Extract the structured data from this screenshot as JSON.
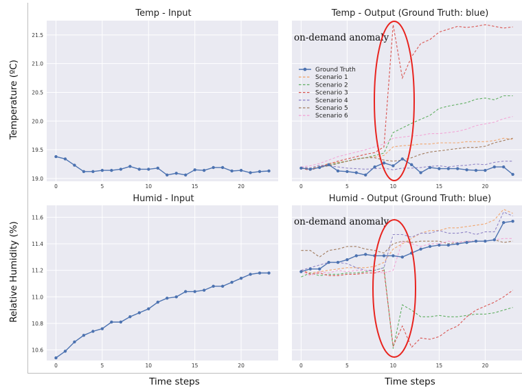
{
  "figure": {
    "ylabels": [
      "Temperature (ºC)",
      "Relative Humidity (%)"
    ],
    "xlabel": "Time steps",
    "annotation": "on-demand anomaly"
  },
  "colors": {
    "ground_truth": "#4c72b0",
    "scenario_1": "#f0a56d",
    "scenario_2": "#5fae60",
    "scenario_3": "#d9534f",
    "scenario_4": "#8f84c6",
    "scenario_5": "#a07a5c",
    "scenario_6": "#f2a6d6",
    "panel_bg": "#eaeaf2",
    "grid": "#ffffff",
    "anomaly_ellipse": "#e8231e"
  },
  "chart_data": [
    {
      "type": "line",
      "title": "Temp - Input",
      "xlabel": "",
      "ylabel": "Temperature (ºC)",
      "xlim": [
        -1,
        24
      ],
      "ylim": [
        18.95,
        21.75
      ],
      "xticks": [
        0,
        5,
        10,
        15,
        20
      ],
      "yticks": [
        19.0,
        19.5,
        20.0,
        20.5,
        21.0,
        21.5
      ],
      "ytick_labels": [
        "19.0",
        "19.5",
        "20.0",
        "20.5",
        "21.0",
        "21.5"
      ],
      "grid": true,
      "series": [
        {
          "name": "",
          "key": "ground_truth",
          "style": "solid-marker",
          "x": [
            0,
            1,
            2,
            3,
            4,
            5,
            6,
            7,
            8,
            9,
            10,
            11,
            12,
            13,
            14,
            15,
            16,
            17,
            18,
            19,
            20,
            21,
            22,
            23
          ],
          "values": [
            19.38,
            19.34,
            19.23,
            19.12,
            19.12,
            19.14,
            19.14,
            19.16,
            19.21,
            19.16,
            19.16,
            19.18,
            19.06,
            19.09,
            19.06,
            19.15,
            19.14,
            19.19,
            19.19,
            19.13,
            19.14,
            19.1,
            19.12,
            19.13
          ]
        }
      ]
    },
    {
      "type": "line",
      "title": "Temp - Output (Ground Truth: blue)",
      "xlabel": "",
      "ylabel": "",
      "xlim": [
        -1,
        24
      ],
      "ylim": [
        18.95,
        21.75
      ],
      "xticks": [
        0,
        5,
        10,
        15,
        20
      ],
      "yticks": [
        19.0,
        19.5,
        20.0,
        20.5,
        21.0,
        21.5
      ],
      "grid": true,
      "legend": "center-left",
      "annotation": {
        "text": "on-demand anomaly",
        "x": 10
      },
      "series": [
        {
          "name": "Ground Truth",
          "key": "ground_truth",
          "style": "solid-marker",
          "x": [
            0,
            1,
            2,
            3,
            4,
            5,
            6,
            7,
            8,
            9,
            10,
            11,
            12,
            13,
            14,
            15,
            16,
            17,
            18,
            19,
            20,
            21,
            22,
            23
          ],
          "values": [
            19.18,
            19.16,
            19.19,
            19.24,
            19.13,
            19.12,
            19.1,
            19.06,
            19.2,
            19.27,
            19.22,
            19.34,
            19.24,
            19.1,
            19.19,
            19.17,
            19.17,
            19.17,
            19.15,
            19.14,
            19.14,
            19.2,
            19.2,
            19.07
          ]
        },
        {
          "name": "Scenario 1",
          "key": "scenario_1",
          "style": "dashed",
          "x": [
            0,
            1,
            2,
            3,
            4,
            5,
            6,
            7,
            8,
            9,
            10,
            11,
            12,
            13,
            14,
            15,
            16,
            17,
            18,
            19,
            20,
            21,
            22,
            23
          ],
          "values": [
            19.18,
            19.18,
            19.21,
            19.26,
            19.28,
            19.3,
            19.33,
            19.36,
            19.38,
            19.4,
            19.55,
            19.57,
            19.58,
            19.6,
            19.6,
            19.62,
            19.62,
            19.62,
            19.64,
            19.64,
            19.64,
            19.66,
            19.7,
            19.68
          ]
        },
        {
          "name": "Scenario 2",
          "key": "scenario_2",
          "style": "dashed",
          "x": [
            0,
            1,
            2,
            3,
            4,
            5,
            6,
            7,
            8,
            9,
            10,
            11,
            12,
            13,
            14,
            15,
            16,
            17,
            18,
            19,
            20,
            21,
            22,
            23
          ],
          "values": [
            19.18,
            19.14,
            19.2,
            19.23,
            19.27,
            19.3,
            19.34,
            19.36,
            19.4,
            19.44,
            19.8,
            19.88,
            19.96,
            20.03,
            20.1,
            20.22,
            20.26,
            20.29,
            20.32,
            20.38,
            20.4,
            20.37,
            20.44,
            20.44
          ]
        },
        {
          "name": "Scenario 3",
          "key": "scenario_3",
          "style": "dashed",
          "x": [
            0,
            1,
            2,
            3,
            4,
            5,
            6,
            7,
            8,
            9,
            10,
            11,
            12,
            13,
            14,
            15,
            16,
            17,
            18,
            19,
            20,
            21,
            22,
            23
          ],
          "values": [
            19.18,
            19.14,
            19.2,
            19.25,
            19.3,
            19.34,
            19.38,
            19.42,
            19.45,
            19.55,
            21.68,
            20.75,
            21.12,
            21.35,
            21.42,
            21.55,
            21.6,
            21.65,
            21.63,
            21.65,
            21.68,
            21.65,
            21.62,
            21.64
          ]
        },
        {
          "name": "Scenario 4",
          "key": "scenario_4",
          "style": "dashed",
          "x": [
            0,
            1,
            2,
            3,
            4,
            5,
            6,
            7,
            8,
            9,
            10,
            11,
            12,
            13,
            14,
            15,
            16,
            17,
            18,
            19,
            20,
            21,
            22,
            23
          ],
          "values": [
            19.2,
            19.18,
            19.23,
            19.22,
            19.2,
            19.18,
            19.17,
            19.16,
            19.17,
            19.18,
            19.15,
            19.18,
            19.18,
            19.19,
            19.21,
            19.22,
            19.2,
            19.22,
            19.23,
            19.25,
            19.24,
            19.28,
            19.3,
            19.3
          ]
        },
        {
          "name": "Scenario 5",
          "key": "scenario_5",
          "style": "dashed",
          "x": [
            0,
            1,
            2,
            3,
            4,
            5,
            6,
            7,
            8,
            9,
            10,
            11,
            12,
            13,
            14,
            15,
            16,
            17,
            18,
            19,
            20,
            21,
            22,
            23
          ],
          "values": [
            19.18,
            19.17,
            19.19,
            19.22,
            19.26,
            19.3,
            19.34,
            19.36,
            19.36,
            19.32,
            19.3,
            19.32,
            19.36,
            19.42,
            19.46,
            19.48,
            19.5,
            19.52,
            19.54,
            19.54,
            19.56,
            19.62,
            19.66,
            19.7
          ]
        },
        {
          "name": "Scenario 6",
          "key": "scenario_6",
          "style": "dashed",
          "x": [
            0,
            1,
            2,
            3,
            4,
            5,
            6,
            7,
            8,
            9,
            10,
            11,
            12,
            13,
            14,
            15,
            16,
            17,
            18,
            19,
            20,
            21,
            22,
            23
          ],
          "values": [
            19.2,
            19.22,
            19.26,
            19.32,
            19.38,
            19.42,
            19.46,
            19.5,
            19.55,
            19.6,
            19.7,
            19.72,
            19.74,
            19.75,
            19.78,
            19.78,
            19.8,
            19.82,
            19.86,
            19.92,
            19.95,
            19.98,
            20.04,
            20.08
          ]
        }
      ]
    },
    {
      "type": "line",
      "title": "Humid - Input",
      "xlabel": "",
      "ylabel": "Relative Humidity (%)",
      "xlim": [
        -1,
        24
      ],
      "ylim": [
        10.52,
        11.69
      ],
      "xticks": [
        0,
        5,
        10,
        15,
        20
      ],
      "yticks": [
        10.6,
        10.8,
        11.0,
        11.2,
        11.4,
        11.6
      ],
      "ytick_labels": [
        "10.6",
        "10.8",
        "11.0",
        "11.2",
        "11.4",
        "11.6"
      ],
      "grid": true,
      "series": [
        {
          "name": "",
          "key": "ground_truth",
          "style": "solid-marker",
          "x": [
            0,
            1,
            2,
            3,
            4,
            5,
            6,
            7,
            8,
            9,
            10,
            11,
            12,
            13,
            14,
            15,
            16,
            17,
            18,
            19,
            20,
            21,
            22,
            23
          ],
          "values": [
            10.54,
            10.59,
            10.66,
            10.71,
            10.74,
            10.76,
            10.81,
            10.81,
            10.85,
            10.88,
            10.91,
            10.96,
            10.99,
            11.0,
            11.04,
            11.04,
            11.05,
            11.08,
            11.08,
            11.11,
            11.14,
            11.17,
            11.18,
            11.18
          ]
        }
      ]
    },
    {
      "type": "line",
      "title": "Humid - Output (Ground Truth: blue)",
      "xlabel": "",
      "ylabel": "",
      "xlim": [
        -1,
        24
      ],
      "ylim": [
        10.52,
        11.69
      ],
      "xticks": [
        0,
        5,
        10,
        15,
        20
      ],
      "yticks": [
        10.6,
        10.8,
        11.0,
        11.2,
        11.4,
        11.6
      ],
      "grid": true,
      "annotation": {
        "text": "on-demand anomaly",
        "x": 10
      },
      "series": [
        {
          "name": "Ground Truth",
          "key": "ground_truth",
          "style": "solid-marker",
          "x": [
            0,
            1,
            2,
            3,
            4,
            5,
            6,
            7,
            8,
            9,
            10,
            11,
            12,
            13,
            14,
            15,
            16,
            17,
            18,
            19,
            20,
            21,
            22,
            23
          ],
          "values": [
            11.19,
            11.21,
            11.21,
            11.26,
            11.26,
            11.28,
            11.31,
            11.32,
            11.31,
            11.31,
            11.31,
            11.3,
            11.33,
            11.36,
            11.38,
            11.39,
            11.39,
            11.4,
            11.41,
            11.42,
            11.42,
            11.43,
            11.56,
            11.57
          ]
        },
        {
          "name": "Scenario 1",
          "key": "scenario_1",
          "style": "dashed",
          "x": [
            0,
            1,
            2,
            3,
            4,
            5,
            6,
            7,
            8,
            9,
            10,
            11,
            12,
            13,
            14,
            15,
            16,
            17,
            18,
            19,
            20,
            21,
            22,
            23
          ],
          "values": [
            11.2,
            11.18,
            11.19,
            11.2,
            11.21,
            11.22,
            11.22,
            11.22,
            11.23,
            11.26,
            11.36,
            11.4,
            11.44,
            11.48,
            11.5,
            11.5,
            11.52,
            11.52,
            11.53,
            11.54,
            11.55,
            11.58,
            11.66,
            11.63
          ]
        },
        {
          "name": "Scenario 2",
          "key": "scenario_2",
          "style": "dashed",
          "x": [
            0,
            1,
            2,
            3,
            4,
            5,
            6,
            7,
            8,
            9,
            10,
            11,
            12,
            13,
            14,
            15,
            16,
            17,
            18,
            19,
            20,
            21,
            22,
            23
          ],
          "values": [
            11.15,
            11.18,
            11.16,
            11.17,
            11.17,
            11.18,
            11.18,
            11.19,
            11.2,
            11.22,
            10.61,
            10.94,
            10.9,
            10.85,
            10.85,
            10.86,
            10.85,
            10.85,
            10.86,
            10.87,
            10.87,
            10.88,
            10.9,
            10.92
          ]
        },
        {
          "name": "Scenario 3",
          "key": "scenario_3",
          "style": "dashed",
          "x": [
            0,
            1,
            2,
            3,
            4,
            5,
            6,
            7,
            8,
            9,
            10,
            11,
            12,
            13,
            14,
            15,
            16,
            17,
            18,
            19,
            20,
            21,
            22,
            23
          ],
          "values": [
            11.2,
            11.17,
            11.18,
            11.16,
            11.16,
            11.17,
            11.17,
            11.18,
            11.18,
            11.2,
            10.63,
            10.78,
            10.62,
            10.69,
            10.68,
            10.7,
            10.75,
            10.78,
            10.85,
            10.9,
            10.93,
            10.96,
            11.0,
            11.05
          ]
        },
        {
          "name": "Scenario 4",
          "key": "scenario_4",
          "style": "dashed",
          "x": [
            0,
            1,
            2,
            3,
            4,
            5,
            6,
            7,
            8,
            9,
            10,
            11,
            12,
            13,
            14,
            15,
            16,
            17,
            18,
            19,
            20,
            21,
            22,
            23
          ],
          "values": [
            11.2,
            11.22,
            11.24,
            11.26,
            11.26,
            11.25,
            11.22,
            11.2,
            11.2,
            11.22,
            11.47,
            11.47,
            11.45,
            11.48,
            11.48,
            11.5,
            11.48,
            11.48,
            11.49,
            11.47,
            11.49,
            11.49,
            11.64,
            11.61
          ]
        },
        {
          "name": "Scenario 5",
          "key": "scenario_5",
          "style": "dashed",
          "x": [
            0,
            1,
            2,
            3,
            4,
            5,
            6,
            7,
            8,
            9,
            10,
            11,
            12,
            13,
            14,
            15,
            16,
            17,
            18,
            19,
            20,
            21,
            22,
            23
          ],
          "values": [
            11.35,
            11.35,
            11.3,
            11.35,
            11.36,
            11.38,
            11.38,
            11.36,
            11.35,
            11.33,
            11.4,
            11.42,
            11.41,
            11.42,
            11.42,
            11.42,
            11.4,
            11.41,
            11.42,
            11.42,
            11.42,
            11.43,
            11.41,
            11.42
          ]
        },
        {
          "name": "Scenario 6",
          "key": "scenario_6",
          "style": "dashed",
          "x": [
            0,
            1,
            2,
            3,
            4,
            5,
            6,
            7,
            8,
            9,
            10,
            11,
            12,
            13,
            14,
            15,
            16,
            17,
            18,
            19,
            20,
            21,
            22,
            23
          ],
          "values": [
            11.2,
            11.16,
            11.19,
            11.18,
            11.2,
            11.19,
            11.2,
            11.2,
            11.19,
            11.18,
            11.2,
            11.42,
            11.4,
            11.38,
            11.4,
            11.4,
            11.42,
            11.41,
            11.42,
            11.42,
            11.42,
            11.43,
            11.44,
            11.44
          ]
        }
      ]
    }
  ]
}
